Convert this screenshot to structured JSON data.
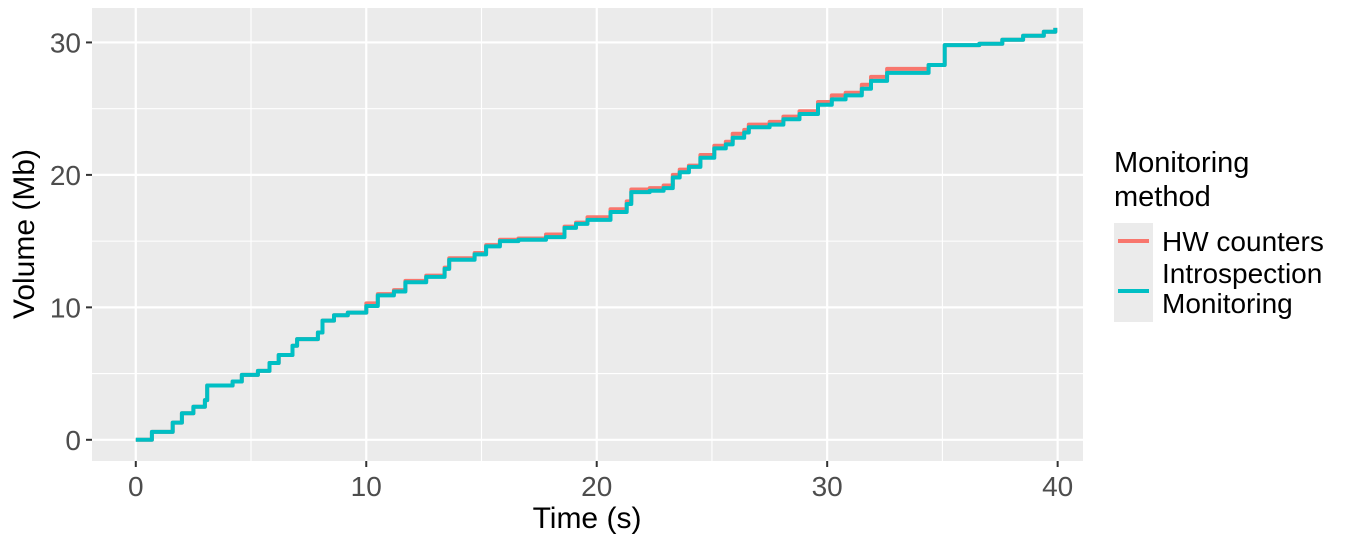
{
  "chart_data": {
    "type": "line",
    "xlabel": "Time (s)",
    "ylabel": "Volume (Mb)",
    "xlim": [
      -1.9,
      41.1
    ],
    "ylim": [
      -1.6,
      32.6
    ],
    "x_ticks": [
      0,
      10,
      20,
      30,
      40
    ],
    "y_ticks": [
      0,
      10,
      20,
      30
    ],
    "grid": true,
    "step": true,
    "legend": {
      "title_lines": [
        "Monitoring",
        "method"
      ],
      "placement": "right"
    },
    "series": [
      {
        "name": "HW counters",
        "color": "#F8766D",
        "x": [
          0.0,
          0.7,
          1.6,
          2.0,
          2.5,
          3.0,
          3.1,
          4.2,
          4.6,
          5.3,
          5.8,
          6.2,
          6.8,
          7.0,
          7.9,
          8.1,
          8.6,
          9.2,
          10.0,
          10.5,
          11.2,
          11.7,
          12.6,
          13.4,
          13.6,
          14.7,
          15.2,
          15.8,
          16.6,
          17.8,
          18.6,
          19.1,
          19.6,
          20.6,
          21.3,
          21.5,
          22.3,
          22.9,
          23.3,
          23.6,
          24.0,
          24.5,
          25.1,
          25.6,
          25.9,
          26.4,
          26.6,
          27.5,
          28.1,
          28.8,
          29.6,
          30.2,
          30.8,
          31.5,
          31.9,
          32.6,
          34.4,
          35.1,
          36.6,
          37.6,
          38.5,
          39.4,
          39.9
        ],
        "y": [
          0.0,
          0.6,
          1.3,
          2.0,
          2.5,
          3.0,
          4.1,
          4.4,
          4.9,
          5.2,
          5.8,
          6.4,
          7.1,
          7.6,
          8.1,
          9.0,
          9.4,
          9.6,
          10.3,
          11.0,
          11.3,
          12.0,
          12.4,
          13.0,
          13.7,
          14.1,
          14.7,
          15.1,
          15.2,
          15.5,
          16.1,
          16.4,
          16.8,
          17.4,
          18.0,
          18.9,
          19.0,
          19.2,
          20.0,
          20.4,
          20.7,
          21.5,
          22.2,
          22.5,
          23.1,
          23.4,
          23.8,
          24.0,
          24.4,
          24.8,
          25.5,
          26.0,
          26.2,
          26.8,
          27.4,
          28.0,
          28.3,
          29.8,
          29.9,
          30.2,
          30.5,
          30.8,
          31.1
        ]
      },
      {
        "name": "Introspection\nMonitoring",
        "color": "#00BFC4",
        "x": [
          0.0,
          0.7,
          1.6,
          2.0,
          2.5,
          3.0,
          3.1,
          4.2,
          4.6,
          5.3,
          5.8,
          6.2,
          6.8,
          7.0,
          7.9,
          8.1,
          8.6,
          9.2,
          10.0,
          10.5,
          11.2,
          11.7,
          12.6,
          13.4,
          13.6,
          14.7,
          15.2,
          15.8,
          16.6,
          17.8,
          18.6,
          19.1,
          19.6,
          20.6,
          21.3,
          21.5,
          22.3,
          22.9,
          23.3,
          23.6,
          24.0,
          24.5,
          25.1,
          25.6,
          25.9,
          26.4,
          26.6,
          27.5,
          28.1,
          28.8,
          29.6,
          30.2,
          30.8,
          31.5,
          31.9,
          32.6,
          34.4,
          35.1,
          36.6,
          37.6,
          38.5,
          39.4,
          39.9
        ],
        "y": [
          0.0,
          0.6,
          1.3,
          2.0,
          2.5,
          3.0,
          4.1,
          4.4,
          4.9,
          5.2,
          5.8,
          6.4,
          7.1,
          7.6,
          8.1,
          9.0,
          9.4,
          9.6,
          10.1,
          10.9,
          11.2,
          11.9,
          12.3,
          12.9,
          13.6,
          14.0,
          14.6,
          15.0,
          15.1,
          15.3,
          16.0,
          16.3,
          16.6,
          17.2,
          17.8,
          18.7,
          18.8,
          19.0,
          19.8,
          20.2,
          20.6,
          21.3,
          22.0,
          22.3,
          22.8,
          23.2,
          23.6,
          23.8,
          24.2,
          24.6,
          25.3,
          25.7,
          26.0,
          26.5,
          27.1,
          27.7,
          28.3,
          29.8,
          29.9,
          30.2,
          30.5,
          30.8,
          31.1
        ]
      }
    ]
  }
}
